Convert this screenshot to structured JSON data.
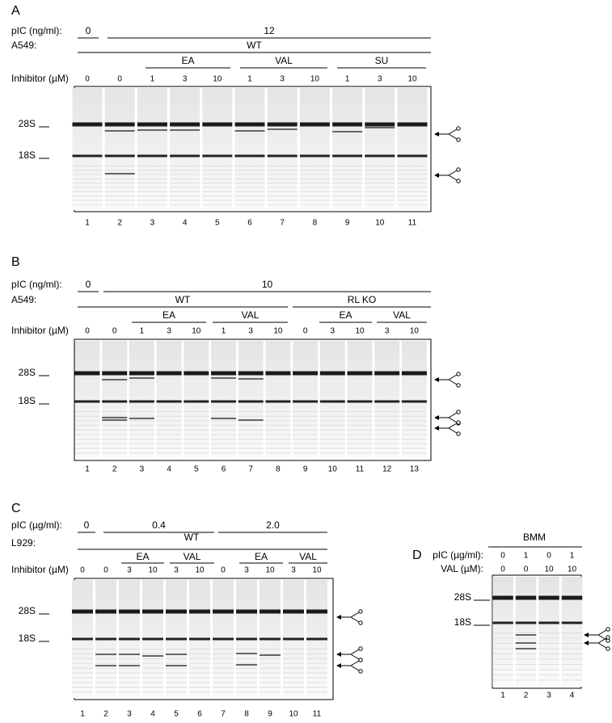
{
  "panels": [
    {
      "label": "A",
      "rows": [
        {
          "label": "pIC (ng/ml):",
          "groups": [
            "0",
            "12"
          ]
        },
        {
          "label": "A549:",
          "groups": [
            "WT"
          ]
        },
        {
          "groups": [
            "EA",
            "VAL",
            "SU"
          ]
        }
      ],
      "inhibitor": {
        "label": "Inhibitor (µM)",
        "values": [
          0,
          0,
          1,
          3,
          10,
          1,
          3,
          10,
          1,
          3,
          10
        ]
      },
      "markers": [
        "28S",
        "18S"
      ],
      "lanes": [
        1,
        2,
        3,
        4,
        5,
        6,
        7,
        8,
        9,
        10,
        11
      ]
    },
    {
      "label": "B",
      "rows": [
        {
          "label": "pIC (ng/ml):",
          "groups": [
            "0",
            "10"
          ]
        },
        {
          "label": "A549:",
          "groups": [
            "WT",
            "RL KO"
          ]
        },
        {
          "groups": [
            "EA",
            "VAL",
            "EA",
            "VAL"
          ]
        }
      ],
      "inhibitor": {
        "label": "Inhibitor (µM)",
        "values": [
          0,
          0,
          1,
          3,
          10,
          1,
          3,
          10,
          0,
          3,
          10,
          3,
          10
        ]
      },
      "markers": [
        "28S",
        "18S"
      ],
      "lanes": [
        1,
        2,
        3,
        4,
        5,
        6,
        7,
        8,
        9,
        10,
        11,
        12,
        13
      ]
    },
    {
      "label": "C",
      "rows": [
        {
          "label": "pIC (µg/ml):",
          "groups": [
            "0",
            "0.4",
            "2.0"
          ]
        },
        {
          "label": "L929:",
          "groups": [
            "WT"
          ]
        },
        {
          "groups": [
            "EA",
            "VAL",
            "EA",
            "VAL"
          ]
        }
      ],
      "inhibitor": {
        "label": "Inhibitor (µM)",
        "values": [
          0,
          0,
          3,
          10,
          3,
          10,
          0,
          3,
          10,
          3,
          10
        ]
      },
      "markers": [
        "28S",
        "18S"
      ],
      "lanes": [
        1,
        2,
        3,
        4,
        5,
        6,
        7,
        8,
        9,
        10,
        11
      ]
    },
    {
      "label": "D",
      "header": "BMM",
      "rows": [
        {
          "label": "pIC (µg/ml):",
          "values": [
            0,
            1,
            0,
            1
          ]
        },
        {
          "label": "VAL (µM):",
          "values": [
            0,
            0,
            10,
            10
          ]
        }
      ],
      "markers": [
        "28S",
        "18S"
      ],
      "lanes": [
        1,
        2,
        3,
        4
      ]
    }
  ]
}
